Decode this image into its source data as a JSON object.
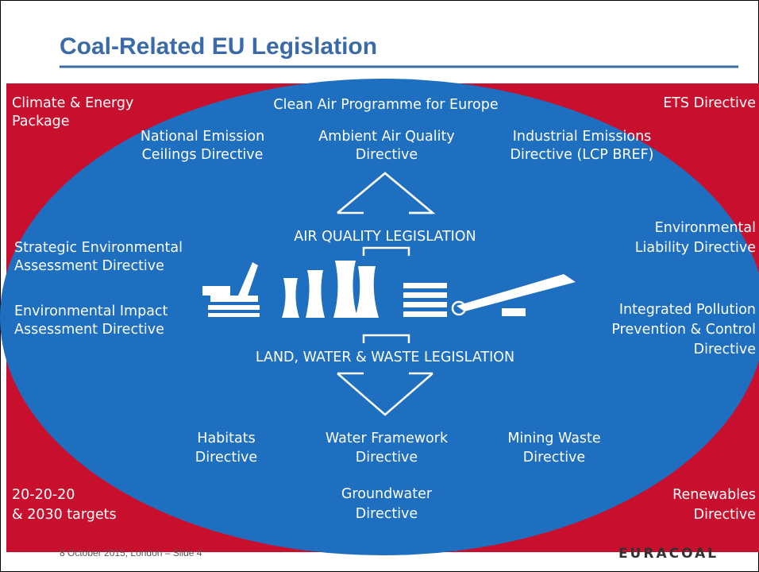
{
  "title": "Coal-Related EU Legislation",
  "footer": "8 October 2015, London – Slide 4",
  "logo": "EURACOAL",
  "labels": [
    {
      "lines": [
        "Climate & Energy",
        "Package"
      ]
    },
    {
      "lines": [
        "Clean Air Programme for Europe"
      ]
    },
    {
      "lines": [
        "ETS Directive"
      ]
    },
    {
      "lines": [
        "National Emission",
        "Ceilings Directive"
      ]
    },
    {
      "lines": [
        "Ambient Air Quality",
        "Directive"
      ]
    },
    {
      "lines": [
        "Industrial Emissions",
        "Directive (LCP BREF)"
      ]
    },
    {
      "lines": [
        "AIR QUALITY LEGISLATION"
      ]
    },
    {
      "lines": [
        "Environmental",
        "Liability Directive"
      ]
    },
    {
      "lines": [
        "Strategic Environmental",
        "Assessment Directive"
      ]
    },
    {
      "lines": [
        "Environmental Impact",
        "Assessment Directive"
      ]
    },
    {
      "lines": [
        "Integrated Pollution",
        "Prevention & Control",
        "Directive"
      ]
    },
    {
      "lines": [
        "LAND, WATER & WASTE LEGISLATION"
      ]
    },
    {
      "lines": [
        "Habitats",
        "Directive"
      ]
    },
    {
      "lines": [
        "Water Framework",
        "Directive"
      ]
    },
    {
      "lines": [
        "Mining Waste",
        "Directive"
      ]
    },
    {
      "lines": [
        "20-20-20",
        "& 2030 targets"
      ]
    },
    {
      "lines": [
        "Groundwater",
        "Directive"
      ]
    },
    {
      "lines": [
        "Renewables",
        "Directive"
      ]
    }
  ]
}
